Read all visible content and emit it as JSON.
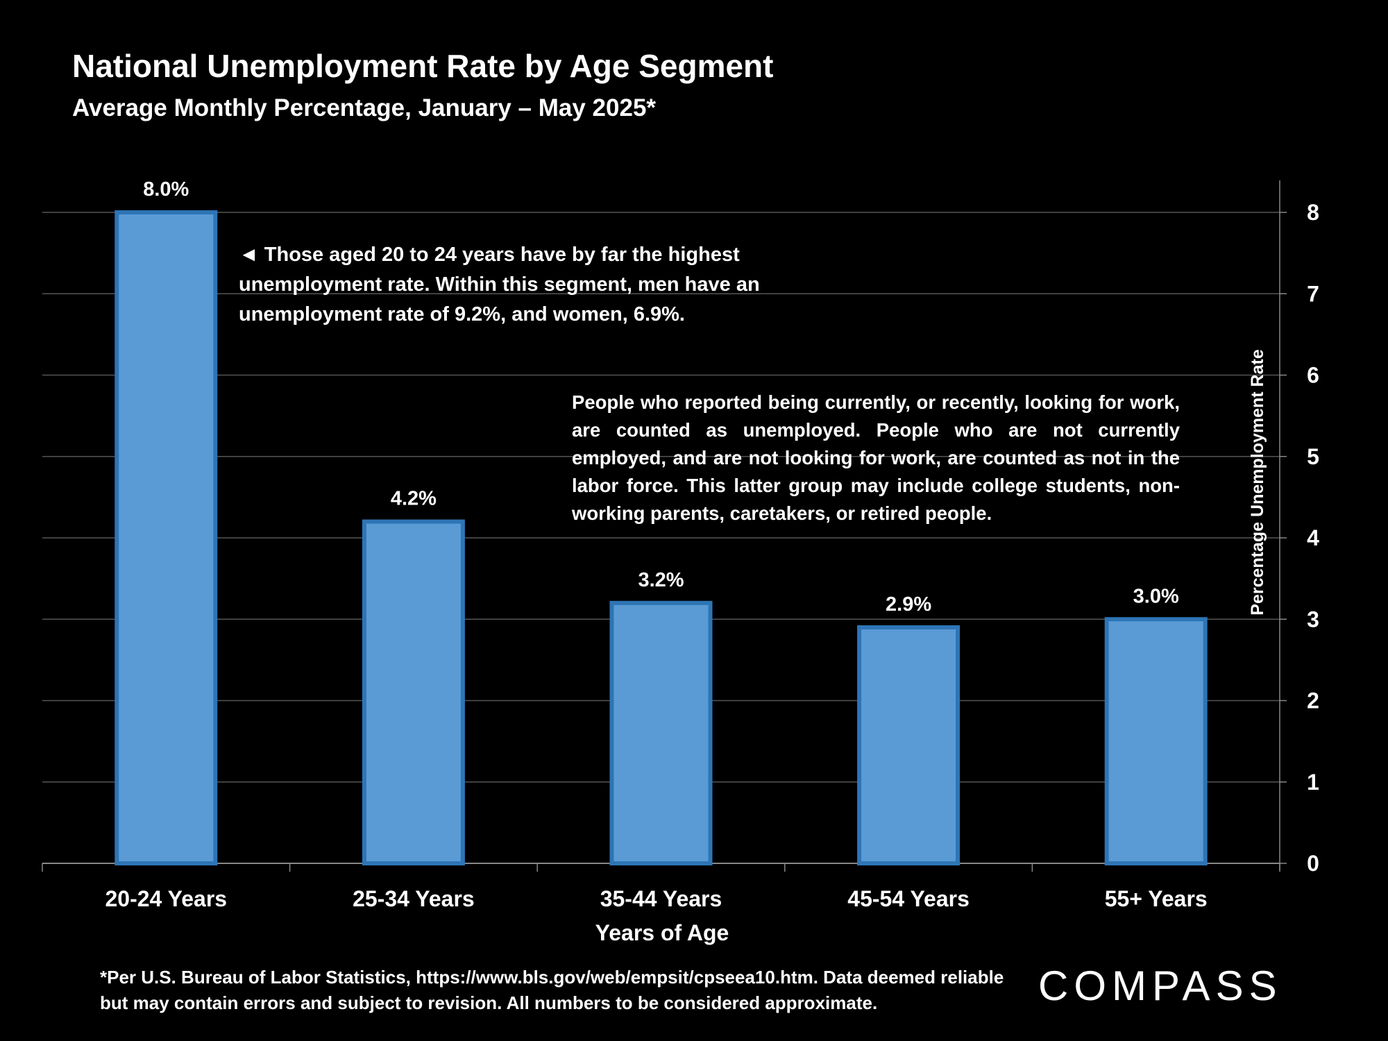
{
  "header": {
    "title": "National Unemployment Rate by Age Segment",
    "subtitle": "Average Monthly Percentage, January – May 2025*"
  },
  "chart_data": {
    "type": "bar",
    "title": "National Unemployment Rate by Age Segment",
    "subtitle": "Average Monthly Percentage, January – May 2025*",
    "categories": [
      "20-24 Years",
      "25-34 Years",
      "35-44 Years",
      "45-54 Years",
      "55+ Years"
    ],
    "values": [
      8.0,
      4.2,
      3.2,
      2.9,
      3.0
    ],
    "data_labels": [
      "8.0%",
      "4.2%",
      "3.2%",
      "2.9%",
      "3.0%"
    ],
    "xlabel": "Years of Age",
    "ylabel": "Percentage Unemployment Rate",
    "ylim": [
      0,
      8
    ],
    "yticks": [
      "0",
      "1",
      "2",
      "3",
      "4",
      "5",
      "6",
      "7",
      "8"
    ],
    "y_axis_side": "right",
    "grid": true,
    "colors": {
      "bar_fill": "#5b9bd5",
      "bar_edge": "#2e75b6",
      "grid": "#555555"
    }
  },
  "annotations": {
    "note1": "◄ Those aged 20 to 24 years have by far the highest unemployment rate. Within this segment, men have an unemployment rate of 9.2%, and women, 6.9%.",
    "note2": "People who reported being currently, or recently, looking for work, are counted as unemployed. People who are not currently employed, and are not looking for work, are counted as not in the labor force. This latter group may include college students, non-working parents, caretakers, or retired people."
  },
  "footer": {
    "footnote": "*Per U.S. Bureau of Labor Statistics, https://www.bls.gov/web/empsit/cpseea10.htm. Data deemed reliable but may contain errors and subject to revision. All numbers to be considered approximate.",
    "logo": "COMPASS"
  }
}
